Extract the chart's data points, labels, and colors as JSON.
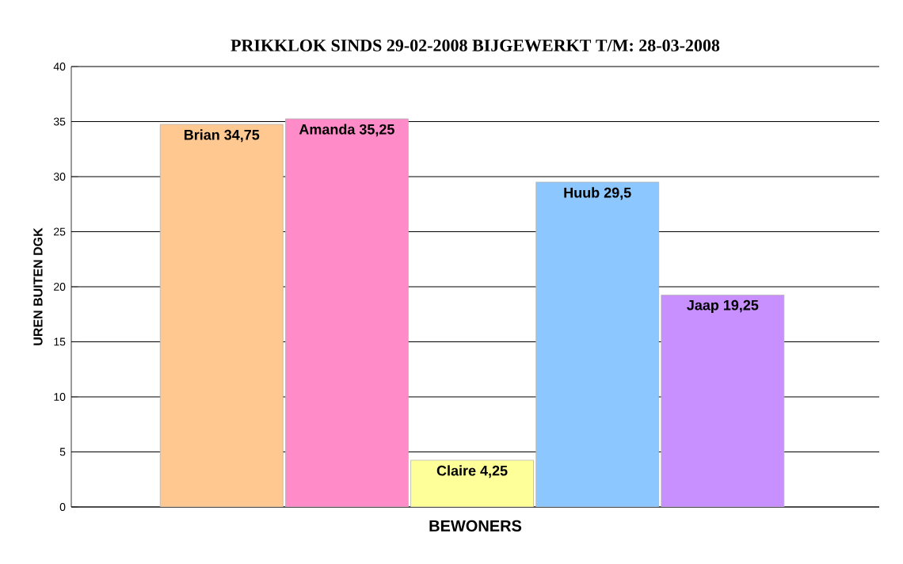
{
  "chart_data": {
    "type": "bar",
    "title": "PRIKKLOK SINDS 29-02-2008 BIJGEWERKT T/M: 28-03-2008",
    "xlabel": "BEWONERS",
    "ylabel": "UREN BUITEN DGK",
    "categories": [
      null,
      null,
      null,
      null,
      null
    ],
    "values": [
      34.75,
      35.25,
      4.25,
      29.5,
      19.25
    ],
    "value_labels": [
      "Brian 34,75",
      "Amanda 35,25",
      "Claire 4,25",
      "Huub 29,5",
      "Jaap 19,25"
    ],
    "colors": [
      "#ffc890",
      "#ff8cc8",
      "#ffff99",
      "#8cc8ff",
      "#c890ff"
    ],
    "ylim": [
      0,
      40
    ],
    "yticks": [
      0,
      5,
      10,
      15,
      20,
      25,
      30,
      35,
      40
    ],
    "grid": "y"
  }
}
